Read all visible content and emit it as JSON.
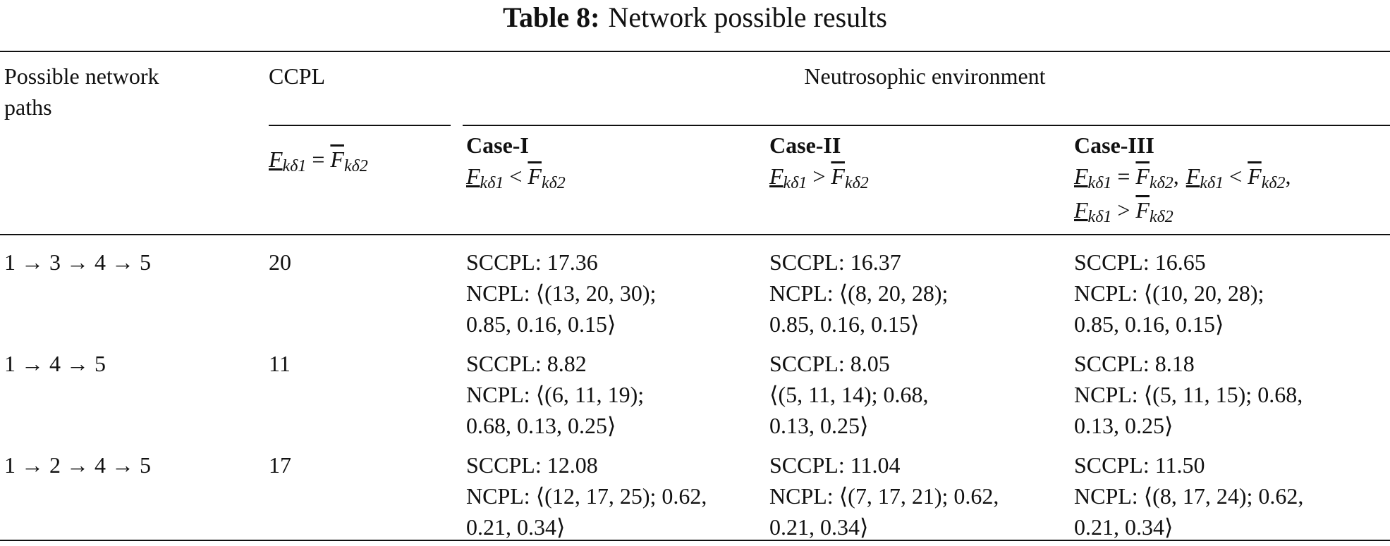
{
  "title": {
    "label": "Table 8:",
    "text": "Network possible results"
  },
  "table": {
    "header": {
      "paths": [
        "Possible network",
        "paths"
      ],
      "ccpl": "CCPL",
      "ccpl_condition": {
        "lhs": {
          "base": "F",
          "sub": "kδ1"
        },
        "op": "=",
        "rhs": {
          "base": "F",
          "sub": "kδ2"
        }
      },
      "group": "Neutrosophic environment",
      "separator": ",",
      "cases": [
        {
          "name": "Case-I",
          "condition_lines": [
            [
              {
                "lhs": {
                  "base": "F",
                  "sub": "kδ1"
                },
                "op": "<",
                "rhs": {
                  "base": "F",
                  "sub": "kδ2"
                }
              }
            ]
          ]
        },
        {
          "name": "Case-II",
          "condition_lines": [
            [
              {
                "lhs": {
                  "base": "F",
                  "sub": "kδ1"
                },
                "op": ">",
                "rhs": {
                  "base": "F",
                  "sub": "kδ2"
                }
              }
            ]
          ]
        },
        {
          "name": "Case-III",
          "condition_lines": [
            [
              {
                "lhs": {
                  "base": "F",
                  "sub": "kδ1"
                },
                "op": "=",
                "rhs": {
                  "base": "F",
                  "sub": "kδ2"
                }
              },
              {
                "lhs": {
                  "base": "F",
                  "sub": "kδ1"
                },
                "op": "<",
                "rhs": {
                  "base": "F",
                  "sub": "kδ2"
                }
              }
            ],
            [
              {
                "lhs": {
                  "base": "F",
                  "sub": "kδ1"
                },
                "op": ">",
                "rhs": {
                  "base": "F",
                  "sub": "kδ2"
                }
              }
            ]
          ]
        }
      ]
    },
    "rows": [
      {
        "path": "1 → 3 → 4 → 5",
        "ccpl": "20",
        "cases": [
          [
            "SCCPL: 17.36",
            "NCPL: ⟨(13, 20, 30);",
            "0.85, 0.16, 0.15⟩"
          ],
          [
            "SCCPL: 16.37",
            "NCPL: ⟨(8, 20, 28);",
            "0.85, 0.16, 0.15⟩"
          ],
          [
            "SCCPL: 16.65",
            "NCPL: ⟨(10, 20, 28);",
            "0.85, 0.16, 0.15⟩"
          ]
        ]
      },
      {
        "path": "1 → 4 → 5",
        "ccpl": "11",
        "cases": [
          [
            "SCCPL: 8.82",
            "NCPL: ⟨(6, 11, 19);",
            "0.68, 0.13, 0.25⟩"
          ],
          [
            "SCCPL: 8.05",
            "⟨(5, 11, 14); 0.68,",
            "0.13, 0.25⟩"
          ],
          [
            "SCCPL: 8.18",
            "NCPL: ⟨(5, 11, 15); 0.68,",
            "0.13, 0.25⟩"
          ]
        ]
      },
      {
        "path": "1 → 2 → 4 → 5",
        "ccpl": "17",
        "cases": [
          [
            "SCCPL: 12.08",
            "NCPL: ⟨(12, 17, 25); 0.62,",
            "0.21, 0.34⟩"
          ],
          [
            "SCCPL: 11.04",
            "NCPL: ⟨(7, 17, 21); 0.62,",
            "0.21, 0.34⟩"
          ],
          [
            "SCCPL: 11.50",
            "NCPL: ⟨(8, 17, 24); 0.62,",
            "0.21, 0.34⟩"
          ]
        ]
      }
    ]
  }
}
